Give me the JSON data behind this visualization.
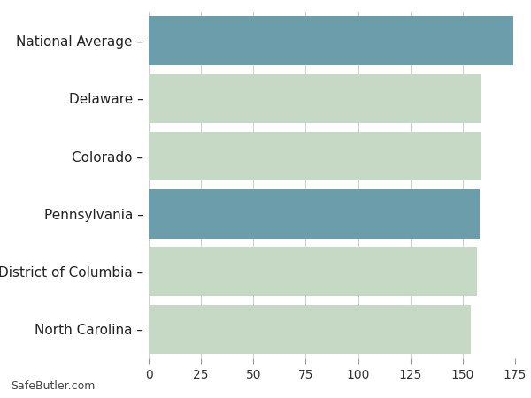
{
  "categories": [
    "North Carolina",
    "District of Columbia",
    "Pennsylvania",
    "Colorado",
    "Delaware",
    "National Average"
  ],
  "values": [
    154,
    157,
    158,
    159,
    159,
    174
  ],
  "bar_colors": [
    "#c5d9c5",
    "#c5d9c5",
    "#6b9eaa",
    "#c5d9c5",
    "#c5d9c5",
    "#6b9eaa"
  ],
  "xlim": [
    0,
    175
  ],
  "xticks": [
    0,
    25,
    50,
    75,
    100,
    125,
    150,
    175
  ],
  "background_color": "#ffffff",
  "watermark": "SafeButler.com",
  "grid_color": "#d0d0d0",
  "label_fontsize": 11,
  "tick_fontsize": 10
}
